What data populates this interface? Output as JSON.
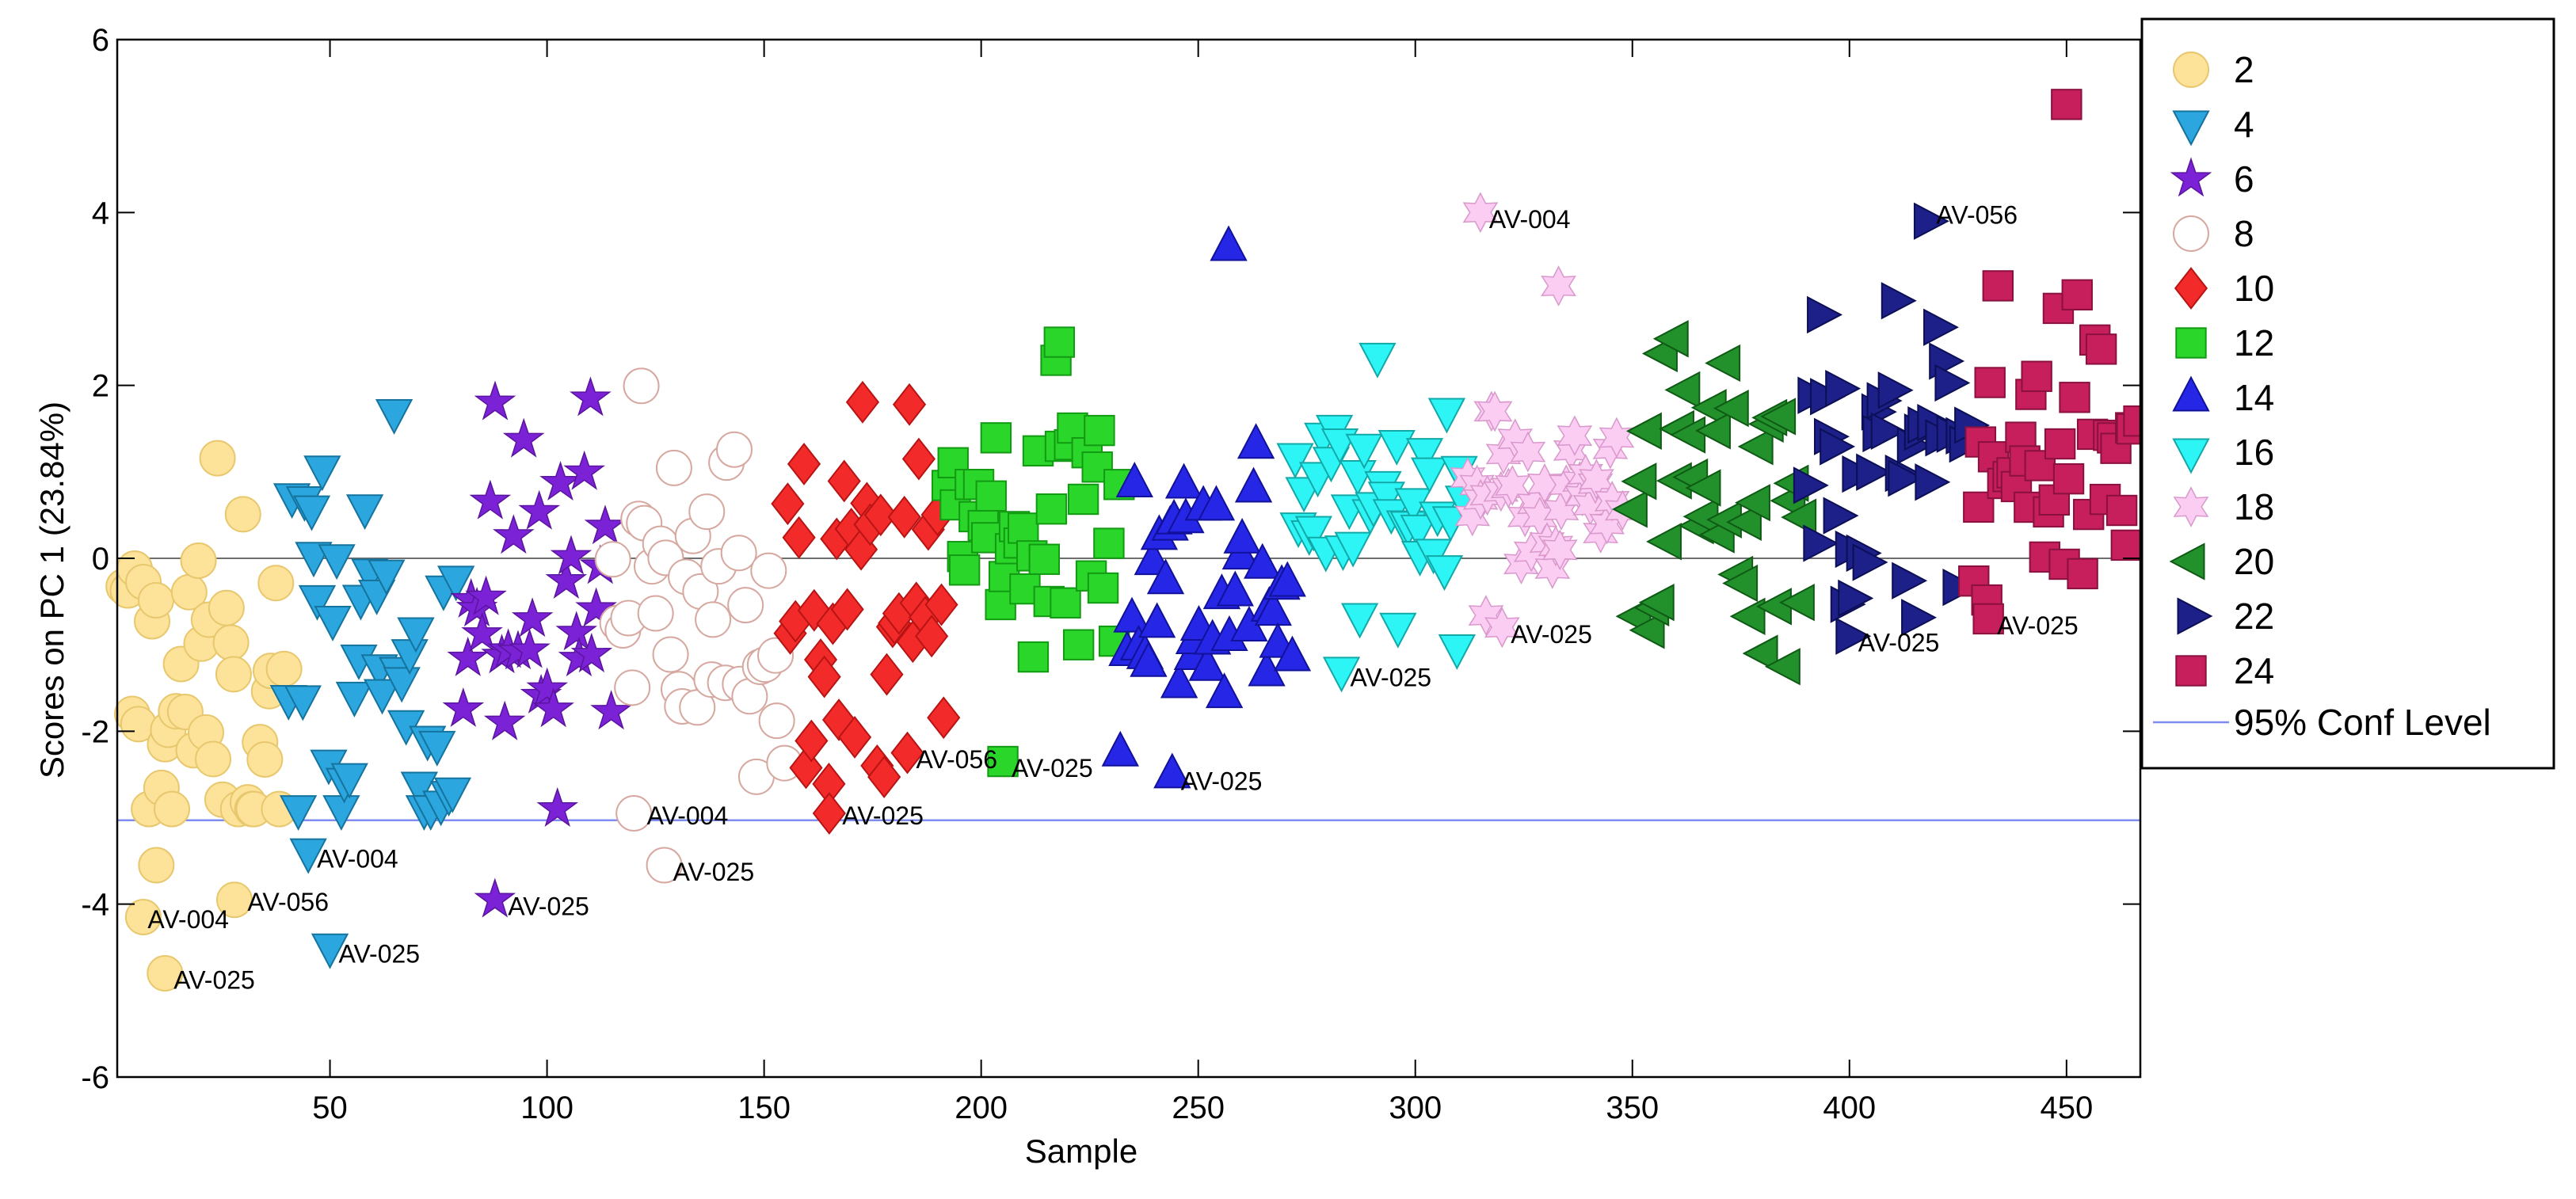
{
  "chart_data": {
    "type": "scatter",
    "title": "",
    "xlabel": "Sample",
    "ylabel": "Scores on PC 1 (23.84%)",
    "xlim": [
      1,
      467
    ],
    "ylim": [
      -6,
      6
    ],
    "xticks": [
      50,
      100,
      150,
      200,
      250,
      300,
      350,
      400,
      450
    ],
    "yticks": [
      -6,
      -4,
      -2,
      0,
      2,
      4,
      6
    ],
    "zero_line": 0,
    "conf_level": {
      "label": "95% Conf Level",
      "value": -3.03,
      "color": "#7f8cf2"
    },
    "legend_position": "right",
    "series": [
      {
        "name": "2",
        "marker": "circle",
        "fill": "#fde39a",
        "stroke": "#e8c86e",
        "x_range": [
          2,
          40
        ],
        "center": -1.6,
        "spread": 1.2,
        "n": 40
      },
      {
        "name": "4",
        "marker": "tri-down",
        "fill": "#2ba6de",
        "stroke": "#15739d",
        "x_range": [
          40,
          80
        ],
        "center": -1.2,
        "spread": 1.25,
        "n": 40
      },
      {
        "name": "6",
        "marker": "star",
        "fill": "#7b22d6",
        "stroke": "#5a149e",
        "x_range": [
          80,
          115
        ],
        "center": -0.6,
        "spread": 1.1,
        "n": 32
      },
      {
        "name": "8",
        "marker": "circle",
        "fill": "#ffffff",
        "stroke": "#d6a8a0",
        "x_range": [
          115,
          155
        ],
        "center": -0.6,
        "spread": 1.1,
        "n": 38
      },
      {
        "name": "10",
        "marker": "diamond",
        "fill": "#f22a2a",
        "stroke": "#b81414",
        "x_range": [
          155,
          192
        ],
        "center": -0.3,
        "spread": 1.0,
        "n": 40
      },
      {
        "name": "12",
        "marker": "square",
        "fill": "#2bd62b",
        "stroke": "#129a12",
        "x_range": [
          192,
          232
        ],
        "center": 0.35,
        "spread": 0.9,
        "n": 40
      },
      {
        "name": "14",
        "marker": "tri-up",
        "fill": "#2626e6",
        "stroke": "#11119a",
        "x_range": [
          232,
          272
        ],
        "center": -0.2,
        "spread": 0.9,
        "n": 40
      },
      {
        "name": "16",
        "marker": "tri-down",
        "fill": "#2ef5f5",
        "stroke": "#13a8a8",
        "x_range": [
          272,
          312
        ],
        "center": 0.6,
        "spread": 0.65,
        "n": 40
      },
      {
        "name": "18",
        "marker": "hexagram",
        "fill": "#fbcdf3",
        "stroke": "#d998cc",
        "x_range": [
          312,
          348
        ],
        "center": 0.75,
        "spread": 0.55,
        "n": 40
      },
      {
        "name": "20",
        "marker": "tri-left",
        "fill": "#23912b",
        "stroke": "#0f5a15",
        "x_range": [
          350,
          390
        ],
        "center": 0.8,
        "spread": 0.95,
        "n": 40
      },
      {
        "name": "22",
        "marker": "tri-right",
        "fill": "#1c2088",
        "stroke": "#0c0f55",
        "x_range": [
          390,
          428
        ],
        "center": 1.0,
        "spread": 1.0,
        "n": 40
      },
      {
        "name": "24",
        "marker": "square",
        "fill": "#c71f5c",
        "stroke": "#8a1040",
        "x_range": [
          428,
          467
        ],
        "center": 1.25,
        "spread": 0.85,
        "n": 40
      }
    ],
    "highlighted_points": [
      {
        "x": 7,
        "y": -4.15,
        "series": "2"
      },
      {
        "x": 12,
        "y": -4.8,
        "series": "2"
      },
      {
        "x": 10,
        "y": -3.55,
        "series": "2"
      },
      {
        "x": 28,
        "y": -3.95,
        "series": "2"
      },
      {
        "x": 45,
        "y": -3.4,
        "series": "4"
      },
      {
        "x": 50,
        "y": -4.5,
        "series": "4"
      },
      {
        "x": 88,
        "y": -3.95,
        "series": "6"
      },
      {
        "x": 110,
        "y": 1.85,
        "series": "6"
      },
      {
        "x": 120,
        "y": -2.95,
        "series": "8"
      },
      {
        "x": 127,
        "y": -3.55,
        "series": "8"
      },
      {
        "x": 183,
        "y": -2.25,
        "series": "10"
      },
      {
        "x": 165,
        "y": -2.95,
        "series": "10"
      },
      {
        "x": 205,
        "y": -2.35,
        "series": "12"
      },
      {
        "x": 218,
        "y": 2.5,
        "series": "12"
      },
      {
        "x": 244,
        "y": -2.5,
        "series": "14"
      },
      {
        "x": 257,
        "y": 3.6,
        "series": "14"
      },
      {
        "x": 283,
        "y": -1.3,
        "series": "16"
      },
      {
        "x": 315,
        "y": 4.0,
        "series": "18"
      },
      {
        "x": 333,
        "y": 3.15,
        "series": "18"
      },
      {
        "x": 320,
        "y": -0.8,
        "series": "18"
      },
      {
        "x": 400,
        "y": -0.9,
        "series": "22"
      },
      {
        "x": 418,
        "y": 3.9,
        "series": "22"
      },
      {
        "x": 432,
        "y": -0.7,
        "series": "24"
      },
      {
        "x": 450,
        "y": 5.25,
        "series": "24"
      }
    ],
    "annotations": [
      {
        "text": "AV-004",
        "x": 8,
        "y": -4.15
      },
      {
        "text": "AV-025",
        "x": 14,
        "y": -4.85
      },
      {
        "text": "AV-056",
        "x": 31,
        "y": -3.95
      },
      {
        "text": "AV-004",
        "x": 47,
        "y": -3.45
      },
      {
        "text": "AV-025",
        "x": 52,
        "y": -4.55
      },
      {
        "text": "AV-025",
        "x": 91,
        "y": -4.0
      },
      {
        "text": "AV-004",
        "x": 123,
        "y": -2.95
      },
      {
        "text": "AV-025",
        "x": 129,
        "y": -3.6
      },
      {
        "text": "AV-025",
        "x": 168,
        "y": -2.95
      },
      {
        "text": "AV-056",
        "x": 185,
        "y": -2.3
      },
      {
        "text": "AV-025",
        "x": 207,
        "y": -2.4
      },
      {
        "text": "AV-025",
        "x": 246,
        "y": -2.55
      },
      {
        "text": "AV-025",
        "x": 285,
        "y": -1.35
      },
      {
        "text": "AV-004",
        "x": 317,
        "y": 3.95
      },
      {
        "text": "AV-025",
        "x": 322,
        "y": -0.85
      },
      {
        "text": "AV-025",
        "x": 402,
        "y": -0.95
      },
      {
        "text": "AV-056",
        "x": 420,
        "y": 4.0
      },
      {
        "text": "AV-025",
        "x": 434,
        "y": -0.75
      }
    ]
  }
}
